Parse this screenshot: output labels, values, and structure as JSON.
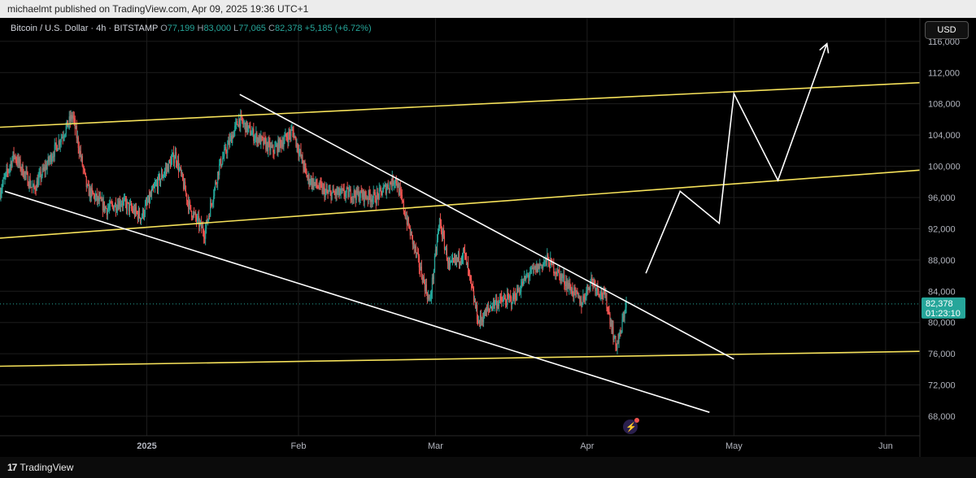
{
  "header": {
    "published_line": "michaelmt published on TradingView.com, Apr 09, 2025 19:36 UTC+1"
  },
  "legend": {
    "symbol": "Bitcoin / U.S. Dollar · 4h · BITSTAMP",
    "open_label": "O",
    "open": "77,199",
    "high_label": "H",
    "high": "83,000",
    "low_label": "L",
    "low": "77,065",
    "close_label": "C",
    "close": "82,378",
    "change": "+5,185 (+6.72%)"
  },
  "currency_button": "USD",
  "price_tag": {
    "price": "82,378",
    "countdown": "01:23:10"
  },
  "footer": {
    "brand_mark": "17",
    "brand": "TradingView"
  },
  "colors": {
    "up": "#26a69a",
    "down": "#ef5350",
    "channel": "#f5e15a",
    "trendline": "#ffffff",
    "tag_bg": "#26a69a"
  },
  "chart_data": {
    "type": "candlestick",
    "title": "Bitcoin / U.S. Dollar · 4h · BITSTAMP",
    "y_ticks": [
      "116,000",
      "112,000",
      "108,000",
      "104,000",
      "100,000",
      "96,000",
      "92,000",
      "88,000",
      "84,000",
      "80,000",
      "76,000",
      "72,000",
      "68,000"
    ],
    "y_tick_values": [
      116000,
      112000,
      108000,
      104000,
      100000,
      96000,
      92000,
      88000,
      84000,
      80000,
      76000,
      72000,
      68000
    ],
    "ylim": [
      65500,
      119000
    ],
    "x_ticks": [
      {
        "label": "2025",
        "date": "2025-01-01"
      },
      {
        "label": "Feb",
        "date": "2025-02-01"
      },
      {
        "label": "Mar",
        "date": "2025-03-01"
      },
      {
        "label": "Apr",
        "date": "2025-04-01"
      },
      {
        "label": "May",
        "date": "2025-05-01"
      },
      {
        "label": "Jun",
        "date": "2025-06-01"
      }
    ],
    "xlim": [
      "2024-12-02",
      "2025-06-08"
    ],
    "price_path": [
      [
        "2024-12-02",
        96500
      ],
      [
        "2024-12-05",
        101500
      ],
      [
        "2024-12-09",
        97000
      ],
      [
        "2024-12-12",
        100500
      ],
      [
        "2024-12-17",
        106500
      ],
      [
        "2024-12-20",
        97000
      ],
      [
        "2024-12-24",
        94500
      ],
      [
        "2024-12-27",
        95500
      ],
      [
        "2024-12-31",
        93500
      ],
      [
        "2025-01-03",
        97500
      ],
      [
        "2025-01-07",
        101500
      ],
      [
        "2025-01-10",
        94500
      ],
      [
        "2025-01-13",
        91500
      ],
      [
        "2025-01-16",
        100000
      ],
      [
        "2025-01-20",
        106000
      ],
      [
        "2025-01-23",
        104000
      ],
      [
        "2025-01-27",
        102000
      ],
      [
        "2025-01-31",
        104500
      ],
      [
        "2025-02-03",
        98500
      ],
      [
        "2025-02-07",
        96500
      ],
      [
        "2025-02-12",
        96500
      ],
      [
        "2025-02-17",
        96000
      ],
      [
        "2025-02-21",
        98500
      ],
      [
        "2025-02-24",
        91500
      ],
      [
        "2025-02-28",
        82500
      ],
      [
        "2025-03-02",
        93000
      ],
      [
        "2025-03-04",
        87000
      ],
      [
        "2025-03-07",
        89000
      ],
      [
        "2025-03-10",
        80000
      ],
      [
        "2025-03-13",
        82500
      ],
      [
        "2025-03-17",
        83000
      ],
      [
        "2025-03-20",
        86000
      ],
      [
        "2025-03-24",
        88000
      ],
      [
        "2025-03-28",
        85000
      ],
      [
        "2025-03-31",
        82500
      ],
      [
        "2025-04-02",
        85500
      ],
      [
        "2025-04-05",
        83000
      ],
      [
        "2025-04-07",
        77000
      ],
      [
        "2025-04-08",
        78500
      ],
      [
        "2025-04-09",
        82378
      ]
    ],
    "annotations": [
      {
        "type": "channel_line",
        "color": "yellow",
        "points": [
          [
            "2024-12-02",
            105000
          ],
          [
            "2025-06-08",
            110700
          ]
        ]
      },
      {
        "type": "channel_line",
        "color": "yellow",
        "points": [
          [
            "2024-12-02",
            90800
          ],
          [
            "2025-06-08",
            99500
          ]
        ]
      },
      {
        "type": "channel_line",
        "color": "yellow",
        "points": [
          [
            "2024-12-02",
            74400
          ],
          [
            "2025-06-08",
            76300
          ]
        ]
      },
      {
        "type": "trendline",
        "color": "white",
        "points": [
          [
            "2025-01-20",
            109200
          ],
          [
            "2025-05-01",
            75300
          ]
        ]
      },
      {
        "type": "trendline",
        "color": "white",
        "points": [
          [
            "2024-12-03",
            96800
          ],
          [
            "2025-04-26",
            68500
          ]
        ]
      },
      {
        "type": "projection_path",
        "color": "white",
        "points": [
          [
            "2025-04-13",
            86300
          ],
          [
            "2025-04-20",
            96800
          ],
          [
            "2025-04-28",
            92700
          ],
          [
            "2025-05-01",
            109300
          ],
          [
            "2025-05-10",
            98200
          ],
          [
            "2025-05-20",
            115700
          ]
        ]
      }
    ]
  }
}
